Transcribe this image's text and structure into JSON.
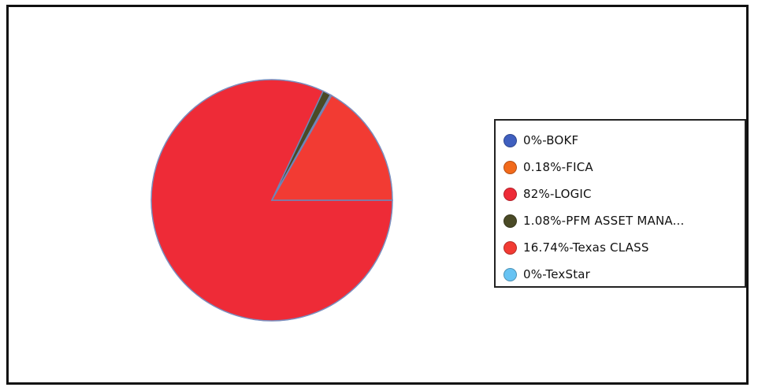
{
  "chart_data": {
    "type": "pie",
    "title": "",
    "legend_position": "right",
    "slices": [
      {
        "name": "BOKF",
        "value": 0,
        "label": "0%-BOKF",
        "color": "#3f5fbf"
      },
      {
        "name": "FICA",
        "value": 0.18,
        "label": "0.18%-FICA",
        "color": "#f26a1b"
      },
      {
        "name": "LOGIC",
        "value": 82,
        "label": "82%-LOGIC",
        "color": "#ee2b37"
      },
      {
        "name": "PFM ASSET MANA...",
        "value": 1.08,
        "label": "1.08%-PFM ASSET MANA...",
        "color": "#4a4a26"
      },
      {
        "name": "Texas CLASS",
        "value": 16.74,
        "label": "16.74%-Texas CLASS",
        "color": "#f23b33"
      },
      {
        "name": "TexStar",
        "value": 0,
        "label": "0%-TexStar",
        "color": "#67c3f3"
      }
    ]
  }
}
